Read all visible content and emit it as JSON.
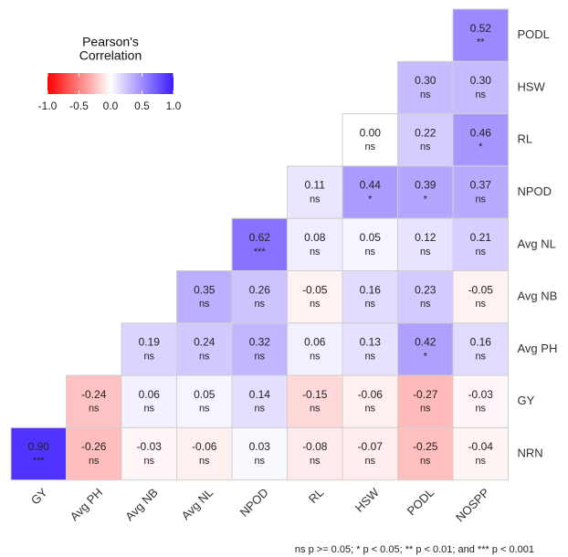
{
  "chart_data": {
    "type": "heatmap",
    "x": [
      "GY",
      "Avg PH",
      "Avg NB",
      "Avg NL",
      "NPOD",
      "RL",
      "HSW",
      "PODL",
      "NOSPP"
    ],
    "y": [
      "PODL",
      "HSW",
      "RL",
      "NPOD",
      "Avg NL",
      "Avg NB",
      "Avg PH",
      "GY",
      "NRN"
    ],
    "values": [
      [
        null,
        null,
        null,
        null,
        null,
        null,
        null,
        null,
        0.52
      ],
      [
        null,
        null,
        null,
        null,
        null,
        null,
        null,
        0.3,
        0.3
      ],
      [
        null,
        null,
        null,
        null,
        null,
        null,
        0.0,
        0.22,
        0.46
      ],
      [
        null,
        null,
        null,
        null,
        null,
        0.11,
        0.44,
        0.39,
        0.37
      ],
      [
        null,
        null,
        null,
        null,
        0.62,
        0.08,
        0.05,
        0.12,
        0.21
      ],
      [
        null,
        null,
        null,
        0.35,
        0.26,
        -0.05,
        0.16,
        0.23,
        -0.05
      ],
      [
        null,
        null,
        0.19,
        0.24,
        0.32,
        0.06,
        0.13,
        0.42,
        0.16
      ],
      [
        null,
        -0.24,
        0.06,
        0.05,
        0.14,
        -0.15,
        -0.06,
        -0.27,
        -0.03
      ],
      [
        0.9,
        -0.26,
        -0.03,
        -0.06,
        0.03,
        -0.08,
        -0.07,
        -0.25,
        -0.04
      ]
    ],
    "value_labels": [
      [
        null,
        null,
        null,
        null,
        null,
        null,
        null,
        null,
        "0.52"
      ],
      [
        null,
        null,
        null,
        null,
        null,
        null,
        null,
        "0.30",
        "0.30"
      ],
      [
        null,
        null,
        null,
        null,
        null,
        null,
        "0.00",
        "0.22",
        "0.46"
      ],
      [
        null,
        null,
        null,
        null,
        null,
        "0.11",
        "0.44",
        "0.39",
        "0.37"
      ],
      [
        null,
        null,
        null,
        null,
        "0.62",
        "0.08",
        "0.05",
        "0.12",
        "0.21"
      ],
      [
        null,
        null,
        null,
        "0.35",
        "0.26",
        "-0.05",
        "0.16",
        "0.23",
        "-0.05"
      ],
      [
        null,
        null,
        "0.19",
        "0.24",
        "0.32",
        "0.06",
        "0.13",
        "0.42",
        "0.16"
      ],
      [
        null,
        "-0.24",
        "0.06",
        "0.05",
        "0.14",
        "-0.15",
        "-0.06",
        "-0.27",
        "-0.03"
      ],
      [
        "0.90",
        "-0.26",
        "-0.03",
        "-0.06",
        "0.03",
        "-0.08",
        "-0.07",
        "-0.25",
        "-0.04"
      ]
    ],
    "significance": [
      [
        null,
        null,
        null,
        null,
        null,
        null,
        null,
        null,
        "**"
      ],
      [
        null,
        null,
        null,
        null,
        null,
        null,
        null,
        "ns",
        "ns"
      ],
      [
        null,
        null,
        null,
        null,
        null,
        null,
        "ns",
        "ns",
        "*"
      ],
      [
        null,
        null,
        null,
        null,
        null,
        "ns",
        "*",
        "*",
        "ns"
      ],
      [
        null,
        null,
        null,
        null,
        "***",
        "ns",
        "ns",
        "ns",
        "ns"
      ],
      [
        null,
        null,
        null,
        "ns",
        "ns",
        "ns",
        "ns",
        "ns",
        "ns"
      ],
      [
        null,
        null,
        "ns",
        "ns",
        "ns",
        "ns",
        "ns",
        "*",
        "ns"
      ],
      [
        null,
        "ns",
        "ns",
        "ns",
        "ns",
        "ns",
        "ns",
        "ns",
        "ns"
      ],
      [
        "***",
        "ns",
        "ns",
        "ns",
        "ns",
        "ns",
        "ns",
        "ns",
        "ns"
      ]
    ],
    "legend_title": [
      "Pearson's",
      "Correlation"
    ],
    "colorbar_lim": [
      -1,
      1
    ],
    "colorbar_ticks": [
      {
        "value": -1,
        "label": "-1.0"
      },
      {
        "value": -0.5,
        "label": "-0.5"
      },
      {
        "value": 0,
        "label": "0.0"
      },
      {
        "value": 0.5,
        "label": "0.5"
      },
      {
        "value": 1,
        "label": "1.0"
      }
    ],
    "colors": {
      "low": "#ff0000",
      "mid": "#ffffff",
      "high": "#3d1cff"
    },
    "footnote": "ns p >= 0.05; * p < 0.05; ** p < 0.01; and *** p < 0.001"
  }
}
